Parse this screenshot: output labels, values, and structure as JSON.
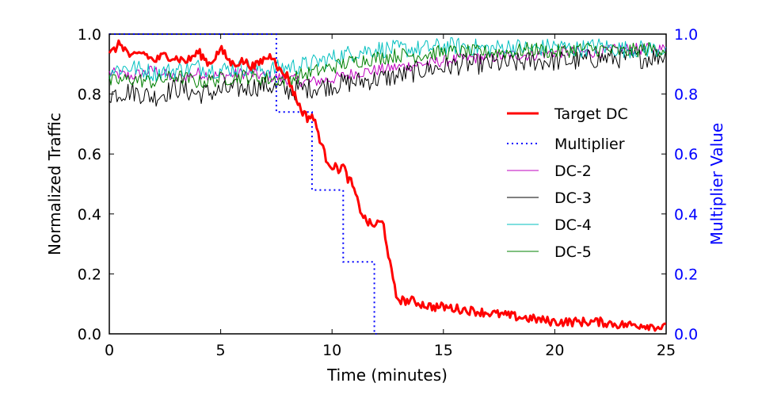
{
  "chart_data": {
    "type": "line",
    "title": "",
    "xlabel": "Time (minutes)",
    "ylabel_left": "Normalized Traffic",
    "ylabel_right": "Multiplier Value",
    "xlim": [
      0,
      25
    ],
    "ylim_left": [
      0,
      1
    ],
    "ylim_right": [
      0,
      1
    ],
    "xticks": [
      0,
      5,
      10,
      15,
      20,
      25
    ],
    "xtick_labels": [
      "0",
      "5",
      "10",
      "15",
      "20",
      "25"
    ],
    "yticks_left": [
      0,
      0.2,
      0.4,
      0.6,
      0.8,
      1.0
    ],
    "ytick_labels_left": [
      "0.0",
      "0.2",
      "0.4",
      "0.6",
      "0.8",
      "1.0"
    ],
    "yticks_right": [
      0,
      0.2,
      0.4,
      0.6,
      0.8,
      1.0
    ],
    "ytick_labels_right": [
      "0.0",
      "0.2",
      "0.4",
      "0.6",
      "0.8",
      "1.0"
    ],
    "grid": false,
    "legend_position": "center-right",
    "colors": {
      "target": "#ff0000",
      "multiplier": "#0000ff",
      "dc2": "#bf00bf",
      "dc3": "#000000",
      "dc4": "#00bfbf",
      "dc5": "#008000",
      "right_axis": "#0000ff"
    },
    "series": [
      {
        "name": "Target DC",
        "key": "target",
        "x": [
          0,
          0.5,
          1,
          1.5,
          2,
          2.5,
          3,
          3.5,
          4,
          4.5,
          5,
          5.5,
          6,
          6.5,
          7,
          7.4,
          7.6,
          8,
          8.3,
          8.6,
          8.9,
          9.1,
          9.3,
          9.5,
          9.7,
          10,
          10.3,
          10.5,
          10.7,
          10.9,
          11.1,
          11.3,
          11.5,
          11.8,
          12.1,
          12.3,
          12.5,
          12.7,
          12.9,
          13.2,
          13.6,
          14,
          14.5,
          15,
          16,
          17,
          18,
          19,
          20,
          21,
          22,
          23,
          24,
          25
        ],
        "y": [
          0.93,
          0.97,
          0.92,
          0.94,
          0.91,
          0.93,
          0.92,
          0.91,
          0.94,
          0.9,
          0.95,
          0.9,
          0.91,
          0.89,
          0.92,
          0.93,
          0.88,
          0.86,
          0.8,
          0.75,
          0.72,
          0.73,
          0.69,
          0.64,
          0.59,
          0.56,
          0.55,
          0.56,
          0.52,
          0.5,
          0.45,
          0.41,
          0.38,
          0.36,
          0.37,
          0.37,
          0.28,
          0.19,
          0.12,
          0.11,
          0.11,
          0.1,
          0.09,
          0.09,
          0.08,
          0.07,
          0.06,
          0.05,
          0.04,
          0.04,
          0.04,
          0.03,
          0.03,
          0.02
        ]
      },
      {
        "name": "Multiplier",
        "key": "multiplier",
        "step": true,
        "x": [
          0,
          7.5,
          7.5,
          9.1,
          9.1,
          10.5,
          10.5,
          11.9,
          11.9,
          12.0
        ],
        "y": [
          1.0,
          1.0,
          0.74,
          0.74,
          0.48,
          0.48,
          0.24,
          0.24,
          0.0,
          0.0
        ]
      },
      {
        "name": "DC-2",
        "key": "dc2",
        "x": [
          0,
          1,
          2,
          3,
          4,
          5,
          6,
          7,
          8,
          9,
          10,
          11,
          12,
          13,
          14,
          15,
          16,
          17,
          18,
          19,
          20,
          21,
          22,
          23,
          24,
          25
        ],
        "y": [
          0.87,
          0.86,
          0.88,
          0.85,
          0.87,
          0.86,
          0.87,
          0.86,
          0.85,
          0.84,
          0.85,
          0.87,
          0.88,
          0.89,
          0.9,
          0.91,
          0.92,
          0.92,
          0.93,
          0.93,
          0.94,
          0.94,
          0.94,
          0.95,
          0.95,
          0.95
        ]
      },
      {
        "name": "DC-3",
        "key": "dc3",
        "x": [
          0,
          1,
          2,
          3,
          4,
          5,
          6,
          7,
          8,
          9,
          10,
          11,
          12,
          13,
          14,
          15,
          16,
          17,
          18,
          19,
          20,
          21,
          22,
          23,
          24,
          25
        ],
        "y": [
          0.8,
          0.81,
          0.79,
          0.82,
          0.8,
          0.81,
          0.82,
          0.83,
          0.81,
          0.82,
          0.83,
          0.84,
          0.85,
          0.86,
          0.88,
          0.89,
          0.9,
          0.9,
          0.9,
          0.91,
          0.91,
          0.91,
          0.92,
          0.92,
          0.92,
          0.93
        ]
      },
      {
        "name": "DC-4",
        "key": "dc4",
        "x": [
          0,
          1,
          2,
          3,
          4,
          5,
          6,
          7,
          8,
          9,
          10,
          11,
          12,
          13,
          14,
          15,
          16,
          17,
          18,
          19,
          20,
          21,
          22,
          23,
          24,
          25
        ],
        "y": [
          0.88,
          0.89,
          0.87,
          0.88,
          0.89,
          0.88,
          0.89,
          0.88,
          0.89,
          0.9,
          0.92,
          0.94,
          0.95,
          0.95,
          0.95,
          0.96,
          0.96,
          0.95,
          0.96,
          0.95,
          0.96,
          0.95,
          0.96,
          0.95,
          0.95,
          0.95
        ]
      },
      {
        "name": "DC-5",
        "key": "dc5",
        "x": [
          0,
          1,
          2,
          3,
          4,
          5,
          6,
          7,
          8,
          9,
          10,
          11,
          12,
          13,
          14,
          15,
          16,
          17,
          18,
          19,
          20,
          21,
          22,
          23,
          24,
          25
        ],
        "y": [
          0.84,
          0.85,
          0.84,
          0.86,
          0.84,
          0.85,
          0.86,
          0.85,
          0.85,
          0.87,
          0.89,
          0.91,
          0.92,
          0.93,
          0.93,
          0.94,
          0.94,
          0.94,
          0.94,
          0.95,
          0.94,
          0.95,
          0.95,
          0.94,
          0.95,
          0.95
        ]
      }
    ]
  }
}
